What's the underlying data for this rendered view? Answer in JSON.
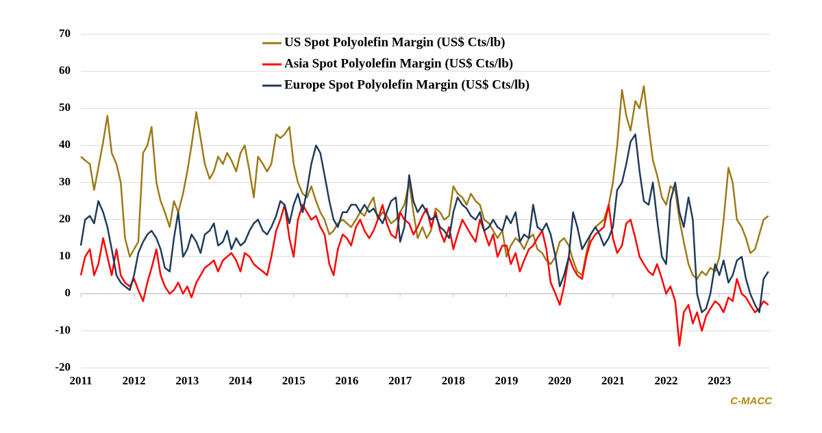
{
  "chart_data": {
    "type": "line",
    "source": "C-MACC",
    "legend": "top-center",
    "grid": true,
    "xlim": [
      2011,
      2023.95
    ],
    "xticks": [
      2011,
      2012,
      2013,
      2014,
      2015,
      2016,
      2017,
      2018,
      2019,
      2020,
      2021,
      2022,
      2023
    ],
    "ylim": [
      -20,
      70
    ],
    "yticks": [
      -20,
      -10,
      0,
      10,
      20,
      30,
      40,
      50,
      60,
      70
    ],
    "x": [
      2011,
      2011.08,
      2011.17,
      2011.25,
      2011.33,
      2011.42,
      2011.5,
      2011.58,
      2011.67,
      2011.75,
      2011.83,
      2011.92,
      2012,
      2012.08,
      2012.17,
      2012.25,
      2012.33,
      2012.42,
      2012.5,
      2012.58,
      2012.67,
      2012.75,
      2012.83,
      2012.92,
      2013,
      2013.08,
      2013.17,
      2013.25,
      2013.33,
      2013.42,
      2013.5,
      2013.58,
      2013.67,
      2013.75,
      2013.83,
      2013.92,
      2014,
      2014.08,
      2014.17,
      2014.25,
      2014.33,
      2014.42,
      2014.5,
      2014.58,
      2014.67,
      2014.75,
      2014.83,
      2014.92,
      2015,
      2015.08,
      2015.17,
      2015.25,
      2015.33,
      2015.42,
      2015.5,
      2015.58,
      2015.67,
      2015.75,
      2015.83,
      2015.92,
      2016,
      2016.08,
      2016.17,
      2016.25,
      2016.33,
      2016.42,
      2016.5,
      2016.58,
      2016.67,
      2016.75,
      2016.83,
      2016.92,
      2017,
      2017.08,
      2017.17,
      2017.25,
      2017.33,
      2017.42,
      2017.5,
      2017.58,
      2017.67,
      2017.75,
      2017.83,
      2017.92,
      2018,
      2018.08,
      2018.17,
      2018.25,
      2018.33,
      2018.42,
      2018.5,
      2018.58,
      2018.67,
      2018.75,
      2018.83,
      2018.92,
      2019,
      2019.08,
      2019.17,
      2019.25,
      2019.33,
      2019.42,
      2019.5,
      2019.58,
      2019.67,
      2019.75,
      2019.83,
      2019.92,
      2020,
      2020.08,
      2020.17,
      2020.25,
      2020.33,
      2020.42,
      2020.5,
      2020.58,
      2020.67,
      2020.75,
      2020.83,
      2020.92,
      2021,
      2021.08,
      2021.17,
      2021.25,
      2021.33,
      2021.42,
      2021.5,
      2021.58,
      2021.67,
      2021.75,
      2021.83,
      2021.92,
      2022,
      2022.08,
      2022.17,
      2022.25,
      2022.33,
      2022.42,
      2022.5,
      2022.58,
      2022.67,
      2022.75,
      2022.83,
      2022.92,
      2023,
      2023.08,
      2023.17,
      2023.25,
      2023.33,
      2023.42,
      2023.5,
      2023.58,
      2023.67,
      2023.75,
      2023.83,
      2023.92
    ],
    "series": [
      {
        "name": "US Spot Polyolefin Margin (US$ Cts/lb)",
        "color": "#9c7a17",
        "values": [
          37,
          36,
          35,
          28,
          34,
          41,
          48,
          38,
          35,
          30,
          15,
          10,
          12,
          14,
          38,
          40,
          45,
          30,
          25,
          22,
          18,
          25,
          22,
          27,
          33,
          40,
          49,
          42,
          35,
          31,
          33,
          37,
          35,
          38,
          36,
          33,
          38,
          40,
          33,
          26,
          37,
          35,
          33,
          35,
          43,
          42,
          43,
          45,
          35,
          30,
          27,
          26,
          29,
          25,
          22,
          20,
          16,
          17,
          19,
          20,
          19,
          18,
          20,
          22,
          21,
          24,
          26,
          20,
          22,
          21,
          19,
          20,
          22,
          24,
          30,
          22,
          15,
          18,
          15,
          17,
          23,
          22,
          20,
          21,
          29,
          27,
          26,
          24,
          27,
          25,
          24,
          20,
          19,
          17,
          15,
          17,
          10,
          13,
          15,
          14,
          12,
          15,
          16,
          12,
          11,
          9,
          8,
          10,
          14,
          15,
          13,
          9,
          6,
          5,
          11,
          16,
          18,
          19,
          20,
          24,
          30,
          40,
          55,
          48,
          44,
          52,
          50,
          56,
          45,
          36,
          32,
          26,
          24,
          29,
          28,
          20,
          14,
          8,
          5,
          4,
          6,
          5,
          7,
          6,
          10,
          20,
          34,
          30,
          20,
          18,
          15,
          11,
          12,
          16,
          20,
          21
        ]
      },
      {
        "name": "Asia Spot Polyolefin Margin (US$ Cts/lb)",
        "color": "#ff0000",
        "values": [
          5,
          10,
          12,
          5,
          8,
          15,
          10,
          5,
          12,
          5,
          3,
          2,
          4,
          1,
          -2,
          3,
          7,
          12,
          5,
          2,
          0,
          1,
          3,
          0,
          2,
          -1,
          3,
          5,
          7,
          8,
          9,
          6,
          9,
          10,
          11,
          9,
          6,
          11,
          10,
          8,
          7,
          6,
          5,
          10,
          17,
          20,
          24,
          15,
          10,
          20,
          24,
          22,
          20,
          21,
          18,
          16,
          8,
          5,
          12,
          16,
          15,
          13,
          18,
          20,
          17,
          15,
          17,
          20,
          24,
          19,
          16,
          15,
          22,
          20,
          19,
          16,
          18,
          21,
          23,
          18,
          22,
          17,
          14,
          18,
          12,
          16,
          20,
          18,
          16,
          14,
          20,
          17,
          13,
          16,
          10,
          13,
          13,
          8,
          11,
          6,
          9,
          12,
          13,
          15,
          17,
          12,
          3,
          0,
          -3,
          2,
          10,
          7,
          5,
          4,
          10,
          14,
          16,
          17,
          18,
          24,
          15,
          11,
          13,
          19,
          20,
          15,
          10,
          8,
          6,
          5,
          8,
          4,
          0,
          2,
          -2,
          -14,
          -5,
          -3,
          -8,
          -5,
          -10,
          -6,
          -4,
          -2,
          -3,
          -5,
          -1,
          -2,
          4,
          0,
          -1,
          -3,
          -5,
          -4,
          -2,
          -3
        ]
      },
      {
        "name": "Europe Spot Polyolefin Margin (US$ Cts/lb)",
        "color": "#1f3b5a",
        "values": [
          13,
          20,
          21,
          19,
          25,
          22,
          18,
          12,
          5,
          3,
          2,
          1,
          5,
          11,
          14,
          16,
          17,
          15,
          12,
          7,
          6,
          15,
          22,
          10,
          12,
          16,
          14,
          11,
          16,
          17,
          19,
          13,
          14,
          17,
          12,
          15,
          13,
          14,
          17,
          19,
          20,
          17,
          16,
          18,
          21,
          25,
          24,
          19,
          24,
          27,
          22,
          28,
          35,
          40,
          38,
          32,
          25,
          20,
          18,
          22,
          22,
          24,
          24,
          22,
          24,
          22,
          23,
          21,
          19,
          22,
          25,
          26,
          14,
          18,
          32,
          25,
          22,
          24,
          22,
          20,
          21,
          18,
          17,
          15,
          22,
          26,
          24,
          23,
          21,
          20,
          22,
          17,
          18,
          20,
          18,
          17,
          21,
          19,
          22,
          14,
          16,
          15,
          24,
          18,
          17,
          19,
          16,
          10,
          2,
          5,
          10,
          22,
          18,
          12,
          14,
          16,
          18,
          16,
          13,
          15,
          18,
          28,
          30,
          35,
          41,
          43,
          33,
          25,
          24,
          30,
          20,
          10,
          8,
          25,
          30,
          22,
          18,
          26,
          20,
          0,
          -5,
          -4,
          0,
          8,
          5,
          9,
          3,
          5,
          9,
          10,
          4,
          0,
          -3,
          -5,
          4,
          6
        ]
      }
    ]
  }
}
